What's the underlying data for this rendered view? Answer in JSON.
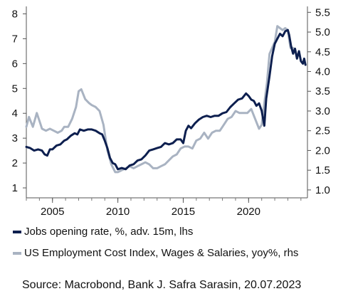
{
  "chart_data": {
    "type": "line",
    "title": "",
    "xlabel": "",
    "x_ticks": [
      "2005",
      "2010",
      "2015",
      "2020"
    ],
    "xlim": [
      2003.0,
      2024.5
    ],
    "y_left": {
      "ticks": [
        "1",
        "2",
        "3",
        "4",
        "5",
        "6",
        "7",
        "8"
      ],
      "ylim": [
        0.6,
        8.3
      ]
    },
    "y_right": {
      "ticks": [
        "1.0",
        "1.5",
        "2.0",
        "2.5",
        "3.0",
        "3.5",
        "4.0",
        "4.5",
        "5.0",
        "5.5"
      ],
      "ylim": [
        0.8,
        5.65
      ]
    },
    "grid": false,
    "legend_position": "bottom",
    "series": [
      {
        "name": "Jobs opening rate, %, adv. 15m, lhs",
        "axis": "left",
        "color": "#0d1f4f",
        "points": [
          [
            2003.0,
            2.65
          ],
          [
            2003.3,
            2.6
          ],
          [
            2003.6,
            2.5
          ],
          [
            2003.9,
            2.55
          ],
          [
            2004.2,
            2.5
          ],
          [
            2004.4,
            2.35
          ],
          [
            2004.6,
            2.3
          ],
          [
            2004.8,
            2.55
          ],
          [
            2005.0,
            2.55
          ],
          [
            2005.3,
            2.7
          ],
          [
            2005.6,
            2.75
          ],
          [
            2005.9,
            2.9
          ],
          [
            2006.1,
            2.95
          ],
          [
            2006.4,
            3.1
          ],
          [
            2006.7,
            3.2
          ],
          [
            2006.9,
            3.15
          ],
          [
            2007.1,
            3.35
          ],
          [
            2007.4,
            3.3
          ],
          [
            2007.7,
            3.35
          ],
          [
            2008.0,
            3.35
          ],
          [
            2008.3,
            3.3
          ],
          [
            2008.6,
            3.2
          ],
          [
            2008.8,
            3.15
          ],
          [
            2009.0,
            2.9
          ],
          [
            2009.2,
            2.6
          ],
          [
            2009.4,
            2.2
          ],
          [
            2009.6,
            2.0
          ],
          [
            2009.8,
            1.95
          ],
          [
            2010.0,
            1.75
          ],
          [
            2010.3,
            1.8
          ],
          [
            2010.6,
            1.75
          ],
          [
            2010.9,
            1.9
          ],
          [
            2011.2,
            1.95
          ],
          [
            2011.5,
            2.1
          ],
          [
            2011.8,
            2.15
          ],
          [
            2012.1,
            2.3
          ],
          [
            2012.4,
            2.5
          ],
          [
            2012.7,
            2.55
          ],
          [
            2013.0,
            2.6
          ],
          [
            2013.3,
            2.65
          ],
          [
            2013.6,
            2.8
          ],
          [
            2013.9,
            2.75
          ],
          [
            2014.2,
            2.8
          ],
          [
            2014.5,
            2.95
          ],
          [
            2014.8,
            2.95
          ],
          [
            2015.0,
            2.8
          ],
          [
            2015.2,
            3.3
          ],
          [
            2015.4,
            3.5
          ],
          [
            2015.6,
            3.4
          ],
          [
            2015.9,
            3.6
          ],
          [
            2016.2,
            3.75
          ],
          [
            2016.5,
            3.85
          ],
          [
            2016.8,
            3.9
          ],
          [
            2017.1,
            3.85
          ],
          [
            2017.4,
            3.9
          ],
          [
            2017.7,
            3.9
          ],
          [
            2018.0,
            4.0
          ],
          [
            2018.3,
            4.05
          ],
          [
            2018.6,
            4.25
          ],
          [
            2018.9,
            4.4
          ],
          [
            2019.2,
            4.55
          ],
          [
            2019.5,
            4.6
          ],
          [
            2019.8,
            4.8
          ],
          [
            2020.0,
            4.7
          ],
          [
            2020.2,
            4.55
          ],
          [
            2020.4,
            4.5
          ],
          [
            2020.6,
            4.3
          ],
          [
            2020.8,
            4.4
          ],
          [
            2021.0,
            4.1
          ],
          [
            2021.2,
            3.5
          ],
          [
            2021.35,
            4.6
          ],
          [
            2021.6,
            5.5
          ],
          [
            2021.8,
            6.3
          ],
          [
            2022.0,
            6.8
          ],
          [
            2022.2,
            7.0
          ],
          [
            2022.4,
            7.2
          ],
          [
            2022.6,
            7.1
          ],
          [
            2022.8,
            7.3
          ],
          [
            2023.0,
            7.35
          ],
          [
            2023.1,
            7.15
          ],
          [
            2023.25,
            6.7
          ],
          [
            2023.4,
            6.4
          ],
          [
            2023.55,
            6.6
          ],
          [
            2023.7,
            6.2
          ],
          [
            2023.85,
            6.5
          ],
          [
            2024.0,
            6.1
          ],
          [
            2024.15,
            6.0
          ],
          [
            2024.25,
            6.2
          ],
          [
            2024.35,
            5.95
          ]
        ]
      },
      {
        "name": "US Employment Cost Index, Wages & Salaries, yoy%, rhs",
        "axis": "right",
        "color": "#a9b3c2",
        "points": [
          [
            2003.0,
            2.6
          ],
          [
            2003.2,
            2.85
          ],
          [
            2003.5,
            2.6
          ],
          [
            2003.8,
            2.95
          ],
          [
            2004.0,
            2.75
          ],
          [
            2004.2,
            2.55
          ],
          [
            2004.5,
            2.5
          ],
          [
            2004.8,
            2.55
          ],
          [
            2005.1,
            2.5
          ],
          [
            2005.4,
            2.45
          ],
          [
            2005.7,
            2.5
          ],
          [
            2005.9,
            2.6
          ],
          [
            2006.2,
            2.6
          ],
          [
            2006.5,
            2.8
          ],
          [
            2006.8,
            3.1
          ],
          [
            2007.0,
            3.5
          ],
          [
            2007.2,
            3.55
          ],
          [
            2007.5,
            3.3
          ],
          [
            2007.8,
            3.2
          ],
          [
            2008.0,
            3.15
          ],
          [
            2008.3,
            3.1
          ],
          [
            2008.6,
            3.0
          ],
          [
            2008.9,
            2.65
          ],
          [
            2009.2,
            2.0
          ],
          [
            2009.5,
            1.65
          ],
          [
            2009.8,
            1.45
          ],
          [
            2010.0,
            1.45
          ],
          [
            2010.3,
            1.5
          ],
          [
            2010.6,
            1.55
          ],
          [
            2010.9,
            1.6
          ],
          [
            2011.2,
            1.55
          ],
          [
            2011.5,
            1.6
          ],
          [
            2011.8,
            1.65
          ],
          [
            2012.1,
            1.7
          ],
          [
            2012.4,
            1.65
          ],
          [
            2012.7,
            1.55
          ],
          [
            2013.0,
            1.55
          ],
          [
            2013.3,
            1.6
          ],
          [
            2013.6,
            1.65
          ],
          [
            2013.9,
            1.75
          ],
          [
            2014.2,
            1.85
          ],
          [
            2014.5,
            1.9
          ],
          [
            2014.8,
            2.05
          ],
          [
            2015.1,
            2.1
          ],
          [
            2015.4,
            2.1
          ],
          [
            2015.7,
            2.05
          ],
          [
            2016.0,
            2.25
          ],
          [
            2016.3,
            2.3
          ],
          [
            2016.6,
            2.45
          ],
          [
            2016.9,
            2.3
          ],
          [
            2017.2,
            2.45
          ],
          [
            2017.5,
            2.5
          ],
          [
            2017.8,
            2.5
          ],
          [
            2018.1,
            2.65
          ],
          [
            2018.4,
            2.8
          ],
          [
            2018.7,
            2.85
          ],
          [
            2019.0,
            3.0
          ],
          [
            2019.3,
            2.95
          ],
          [
            2019.6,
            2.95
          ],
          [
            2019.9,
            2.95
          ],
          [
            2020.2,
            3.05
          ],
          [
            2020.5,
            2.8
          ],
          [
            2020.8,
            2.55
          ],
          [
            2021.0,
            2.65
          ],
          [
            2021.2,
            3.2
          ],
          [
            2021.4,
            3.7
          ],
          [
            2021.6,
            4.45
          ],
          [
            2021.8,
            4.6
          ],
          [
            2022.0,
            4.75
          ],
          [
            2022.2,
            5.15
          ],
          [
            2022.4,
            5.1
          ],
          [
            2022.6,
            5.05
          ],
          [
            2022.8,
            5.1
          ],
          [
            2023.0,
            5.05
          ],
          [
            2023.2,
            4.6
          ],
          [
            2023.4,
            4.6
          ],
          [
            2023.55,
            4.5
          ]
        ]
      }
    ]
  },
  "source": "Source: Macrobond, Bank J. Safra Sarasin, 20.07.2023"
}
